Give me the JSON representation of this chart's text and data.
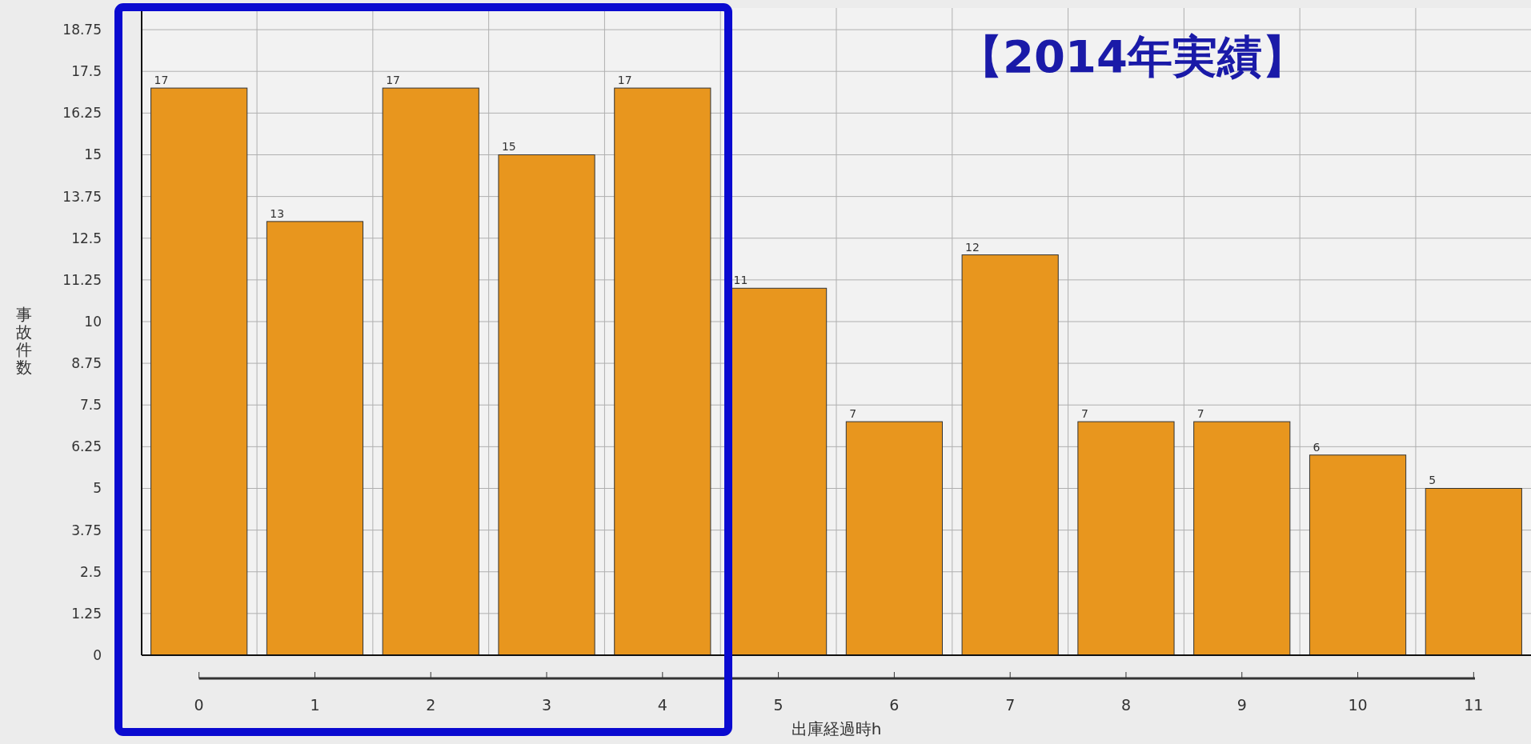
{
  "chart_data": {
    "type": "bar",
    "title": "【2014年実績】",
    "xlabel": "出庫経過時h",
    "ylabel": "事故件数",
    "categories": [
      "0",
      "1",
      "2",
      "3",
      "4",
      "5",
      "6",
      "7",
      "8",
      "9",
      "10",
      "11"
    ],
    "values": [
      17,
      13,
      17,
      15,
      17,
      11,
      7,
      12,
      7,
      7,
      6,
      5
    ],
    "color": "#e8961e",
    "ylim": [
      0,
      19.4
    ],
    "yticks": [
      0,
      1.25,
      2.5,
      3.75,
      5,
      6.25,
      7.5,
      8.75,
      10,
      11.25,
      12.5,
      13.75,
      15,
      16.25,
      17.5,
      18.75
    ],
    "grid": true,
    "data_labels": true
  }
}
